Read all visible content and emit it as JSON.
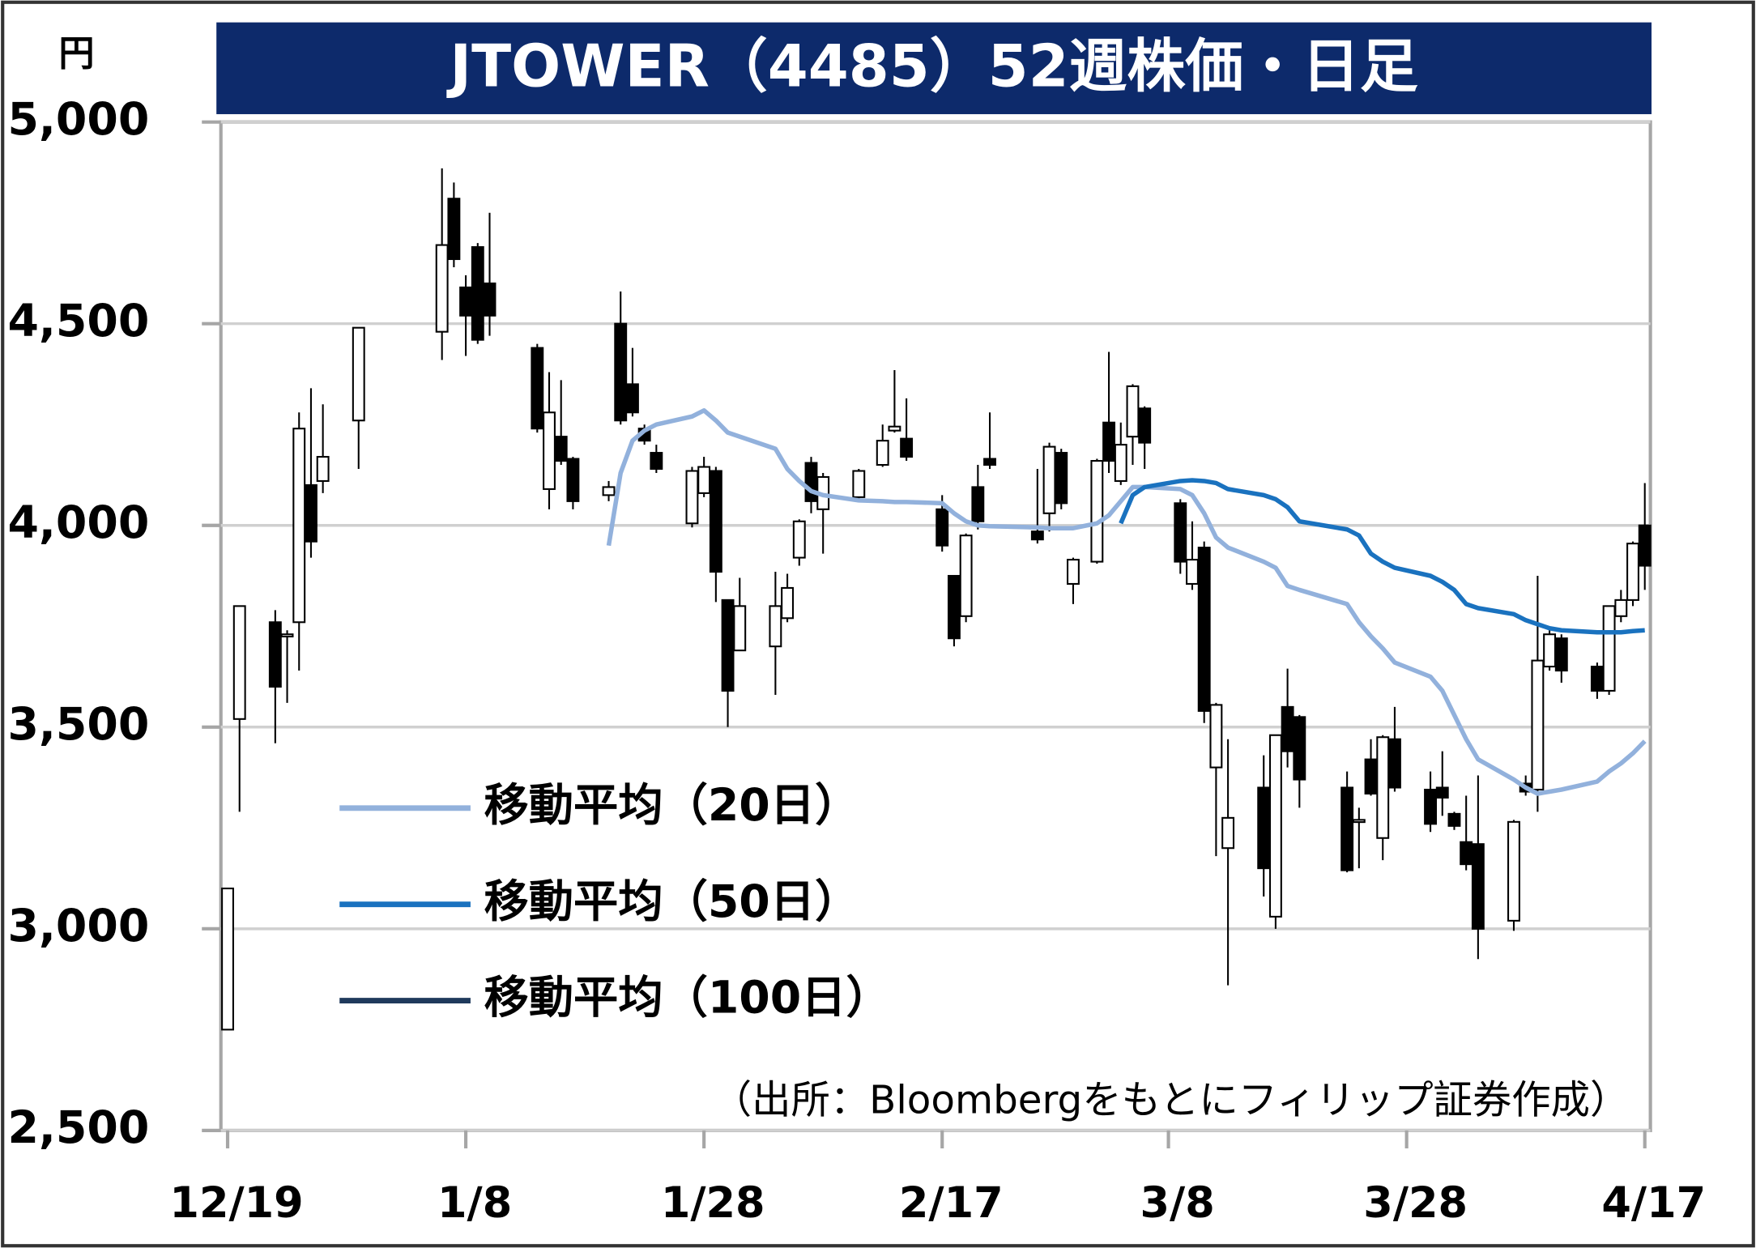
{
  "chart_data": {
    "type": "candlestick",
    "title": "JTOWER（4485）52週株価・日足",
    "y_unit": "円",
    "source": "（出所：Bloombergをもとにフィリップ証券作成）",
    "x": [
      "12/19",
      "12/20",
      "12/23",
      "12/24",
      "12/25",
      "12/26",
      "12/27",
      "12/30",
      "1/6",
      "1/7",
      "1/8",
      "1/9",
      "1/10",
      "1/14",
      "1/15",
      "1/16",
      "1/17",
      "1/20",
      "1/21",
      "1/22",
      "1/23",
      "1/24",
      "1/27",
      "1/28",
      "1/29",
      "1/30",
      "1/31",
      "2/3",
      "2/4",
      "2/5",
      "2/6",
      "2/7",
      "2/10",
      "2/12",
      "2/13",
      "2/14",
      "2/17",
      "2/18",
      "2/19",
      "2/20",
      "2/21",
      "2/25",
      "2/26",
      "2/27",
      "2/28",
      "3/2",
      "3/3",
      "3/4",
      "3/5",
      "3/6",
      "3/9",
      "3/10",
      "3/11",
      "3/12",
      "3/13",
      "3/16",
      "3/17",
      "3/18",
      "3/19",
      "3/23",
      "3/24",
      "3/25",
      "3/26",
      "3/27",
      "3/30",
      "3/31",
      "4/1",
      "4/2",
      "4/3",
      "4/6",
      "4/7",
      "4/8",
      "4/9",
      "4/10",
      "4/13",
      "4/14",
      "4/15",
      "4/16",
      "4/17"
    ],
    "open": [
      2750,
      3520,
      3760,
      3730,
      3760,
      4100,
      4110,
      4260,
      4480,
      4810,
      4590,
      4690,
      4600,
      4440,
      4090,
      4220,
      4165,
      4075,
      4500,
      4350,
      4240,
      4180,
      4005,
      4080,
      4135,
      3815,
      3690,
      3700,
      3770,
      3920,
      4155,
      4040,
      4070,
      4150,
      4235,
      4215,
      4040,
      3875,
      3775,
      4095,
      4165,
      3985,
      4030,
      4180,
      3855,
      3910,
      4255,
      4110,
      4220,
      4290,
      4055,
      3855,
      3945,
      3400,
      3200,
      3350,
      3030,
      3550,
      3525,
      3350,
      3270,
      3420,
      3225,
      3470,
      3345,
      3350,
      3285,
      3215,
      3210,
      3020,
      3360,
      3345,
      3650,
      3720,
      3650,
      3590,
      3775,
      3815,
      4000
    ],
    "high": [
      3100,
      3800,
      3790,
      3740,
      4280,
      4340,
      4300,
      4490,
      4885,
      4850,
      4620,
      4700,
      4775,
      4450,
      4380,
      4360,
      4170,
      4110,
      4580,
      4440,
      4250,
      4200,
      4145,
      4170,
      4145,
      3815,
      3870,
      3885,
      3880,
      4015,
      4170,
      4130,
      4140,
      4250,
      4385,
      4315,
      4075,
      3875,
      3980,
      4150,
      4280,
      4140,
      4205,
      4190,
      3920,
      4165,
      4430,
      4255,
      4350,
      4295,
      4065,
      4010,
      3960,
      3560,
      3470,
      3430,
      3480,
      3645,
      3530,
      3390,
      3300,
      3470,
      3480,
      3550,
      3390,
      3440,
      3290,
      3330,
      3380,
      3270,
      3380,
      3875,
      3740,
      3730,
      3660,
      3800,
      3840,
      3960,
      4105
    ],
    "low": [
      2750,
      3290,
      3460,
      3560,
      3640,
      3920,
      4080,
      4140,
      4410,
      4640,
      4420,
      4450,
      4470,
      4230,
      4040,
      4150,
      4040,
      4060,
      4250,
      4270,
      4200,
      4130,
      3995,
      4070,
      3810,
      3500,
      3690,
      3580,
      3760,
      3900,
      4030,
      3930,
      4065,
      4145,
      4230,
      4160,
      3935,
      3700,
      3760,
      3990,
      4140,
      3955,
      3985,
      4040,
      3805,
      3905,
      4130,
      4100,
      4150,
      4140,
      3880,
      3840,
      3510,
      3180,
      2860,
      3080,
      3000,
      3400,
      3300,
      3140,
      3150,
      3330,
      3170,
      3340,
      3240,
      3280,
      3245,
      3145,
      2925,
      2995,
      3330,
      3290,
      3640,
      3610,
      3570,
      3580,
      3760,
      3800,
      3840
    ],
    "close": [
      3100,
      3800,
      3600,
      3730,
      4240,
      3960,
      4170,
      4490,
      4695,
      4660,
      4520,
      4460,
      4520,
      4240,
      4280,
      4160,
      4060,
      4095,
      4260,
      4280,
      4210,
      4140,
      4135,
      4145,
      3885,
      3590,
      3800,
      3800,
      3845,
      4010,
      4060,
      4120,
      4135,
      4210,
      4245,
      4170,
      3950,
      3720,
      3975,
      4010,
      4150,
      3965,
      4195,
      4055,
      3915,
      4160,
      4160,
      4200,
      4345,
      4205,
      3910,
      3915,
      3540,
      3555,
      3275,
      3150,
      3480,
      3440,
      3370,
      3145,
      3270,
      3335,
      3475,
      3350,
      3260,
      3325,
      3255,
      3160,
      3000,
      3265,
      3340,
      3665,
      3730,
      3640,
      3590,
      3800,
      3815,
      3955,
      3900
    ],
    "up_color": "#ffffff",
    "down_color": "#000000",
    "series": [
      {
        "name": "移動平均（20日）",
        "color": "#92b1dc",
        "values": [
          null,
          null,
          null,
          null,
          null,
          null,
          null,
          null,
          null,
          null,
          null,
          null,
          null,
          null,
          null,
          null,
          null,
          3950,
          4130,
          4210,
          4235,
          4250,
          4270,
          4285,
          4260,
          4230,
          4220,
          4190,
          4140,
          4110,
          4085,
          4075,
          4062,
          4060,
          4058,
          4058,
          4055,
          4030,
          4010,
          4000,
          3998,
          3995,
          3993,
          3993,
          3993,
          4005,
          4025,
          4060,
          4095,
          4095,
          4090,
          4075,
          4030,
          3970,
          3945,
          3910,
          3895,
          3850,
          3840,
          3805,
          3760,
          3725,
          3695,
          3660,
          3625,
          3590,
          3530,
          3470,
          3420,
          3370,
          3350,
          3335,
          3340,
          3345,
          3365,
          3390,
          3410,
          3435,
          3465
        ]
      },
      {
        "name": "移動平均（50日）",
        "color": "#1a72bf",
        "values": [
          null,
          null,
          null,
          null,
          null,
          null,
          null,
          null,
          null,
          null,
          null,
          null,
          null,
          null,
          null,
          null,
          null,
          null,
          null,
          null,
          null,
          null,
          null,
          null,
          null,
          null,
          null,
          null,
          null,
          null,
          null,
          null,
          null,
          null,
          null,
          null,
          null,
          null,
          null,
          null,
          null,
          null,
          null,
          null,
          null,
          null,
          null,
          4005,
          4075,
          4095,
          4110,
          4112,
          4110,
          4105,
          4090,
          4075,
          4065,
          4045,
          4010,
          3990,
          3975,
          3930,
          3910,
          3895,
          3875,
          3860,
          3840,
          3805,
          3795,
          3780,
          3765,
          3755,
          3745,
          3740,
          3735,
          3735,
          3735,
          3738,
          3740
        ]
      },
      {
        "name": "移動平均（100日）",
        "color": "#1f3a5c",
        "values": [
          null,
          null,
          null,
          null,
          null,
          null,
          null,
          null,
          null,
          null,
          null,
          null,
          null,
          null,
          null,
          null,
          null,
          null,
          null,
          null,
          null,
          null,
          null,
          null,
          null,
          null,
          null,
          null,
          null,
          null,
          null,
          null,
          null,
          null,
          null,
          null,
          null,
          null,
          null,
          null,
          null,
          null,
          null,
          null,
          null,
          null,
          null,
          null,
          null,
          null,
          null,
          null,
          null,
          null,
          null,
          null,
          null,
          null,
          null,
          null,
          null,
          null,
          null,
          null,
          null,
          null,
          null,
          null,
          null,
          null,
          null,
          null,
          null,
          null,
          null,
          null,
          null,
          null,
          null
        ]
      }
    ],
    "xticks": [
      "12/19",
      "1/8",
      "1/28",
      "2/17",
      "3/8",
      "3/28",
      "4/17"
    ],
    "ylim": [
      2500,
      5000
    ],
    "yticks": [
      {
        "value": 2500,
        "label": "2,500"
      },
      {
        "value": 3000,
        "label": "3,000"
      },
      {
        "value": 3500,
        "label": "3,500"
      },
      {
        "value": 4000,
        "label": "4,000"
      },
      {
        "value": 4500,
        "label": "4,500"
      },
      {
        "value": 5000,
        "label": "5,000"
      }
    ],
    "grid": true
  }
}
